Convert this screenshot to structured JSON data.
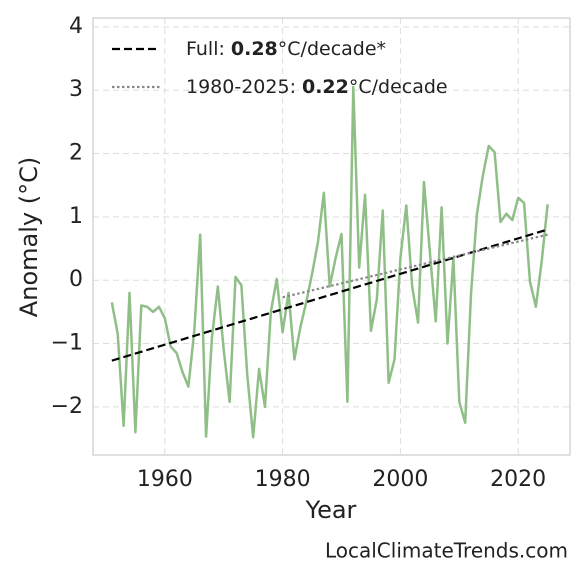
{
  "chart_data": {
    "type": "line",
    "x_label": "Year",
    "y_label": "Anomaly (°C)",
    "watermark": "LocalClimateTrends.com",
    "xlim": [
      1947.8,
      2028.8
    ],
    "ylim": [
      -2.76,
      4.14
    ],
    "xticks": [
      1960,
      1980,
      2000,
      2020
    ],
    "yticks": [
      {
        "value": -2,
        "label": "−2"
      },
      {
        "value": -1,
        "label": "−1"
      },
      0,
      1,
      2,
      3,
      4
    ],
    "grid": true,
    "legend": "upper left",
    "series": [
      {
        "color": "#8fbf87",
        "x": [
          1951,
          1952,
          1953,
          1954,
          1955,
          1956,
          1957,
          1958,
          1959,
          1960,
          1961,
          1962,
          1963,
          1964,
          1965,
          1966,
          1967,
          1968,
          1969,
          1970,
          1971,
          1972,
          1973,
          1974,
          1975,
          1976,
          1977,
          1978,
          1979,
          1980,
          1981,
          1982,
          1983,
          1984,
          1985,
          1986,
          1987,
          1988,
          1989,
          1990,
          1991,
          1992,
          1993,
          1994,
          1995,
          1996,
          1997,
          1998,
          1999,
          2000,
          2001,
          2002,
          2003,
          2004,
          2005,
          2006,
          2007,
          2008,
          2009,
          2010,
          2011,
          2012,
          2013,
          2014,
          2015,
          2016,
          2017,
          2018,
          2019,
          2020,
          2021,
          2022,
          2023,
          2024,
          2025
        ],
        "values": [
          -0.35,
          -0.85,
          -2.3,
          -0.2,
          -2.4,
          -0.4,
          -0.42,
          -0.5,
          -0.42,
          -0.6,
          -1.05,
          -1.15,
          -1.45,
          -1.68,
          -0.8,
          0.72,
          -2.47,
          -0.9,
          -0.1,
          -1.1,
          -1.92,
          0.05,
          -0.08,
          -1.5,
          -2.48,
          -1.4,
          -2.0,
          -0.5,
          0.02,
          -0.82,
          -0.2,
          -1.25,
          -0.75,
          -0.35,
          0.1,
          0.6,
          1.38,
          -0.1,
          0.35,
          0.73,
          -1.92,
          3.05,
          0.2,
          1.35,
          -0.8,
          -0.3,
          1.1,
          -1.62,
          -1.25,
          0.35,
          1.18,
          -0.1,
          -0.67,
          1.55,
          0.45,
          -0.65,
          1.15,
          -1.0,
          0.35,
          -1.92,
          -2.25,
          -0.2,
          1.05,
          1.65,
          2.12,
          2.02,
          0.92,
          1.05,
          0.95,
          1.3,
          1.22,
          -0.02,
          -0.42,
          0.3,
          1.2
        ]
      },
      {
        "name_parts": [
          "Full:",
          "0.28",
          "°C/decade*"
        ],
        "color": "#000000",
        "dash": "dashed",
        "x": [
          1951,
          2025
        ],
        "values": [
          -1.27,
          0.8
        ]
      },
      {
        "name_parts": [
          "1980-2025:",
          "0.22",
          "°C/decade"
        ],
        "color": "#888888",
        "dash": "dotted",
        "x": [
          1980,
          2025
        ],
        "values": [
          -0.27,
          0.72
        ]
      }
    ]
  }
}
